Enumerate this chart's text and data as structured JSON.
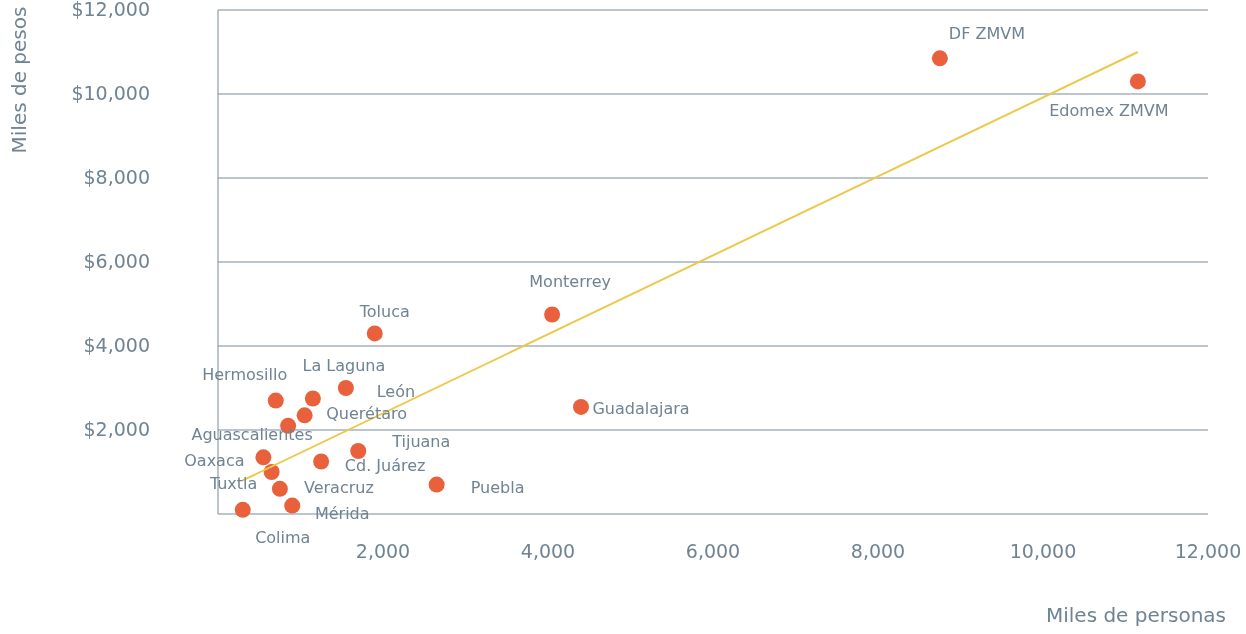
{
  "chart_data": {
    "type": "scatter",
    "xlabel": "Miles de personas",
    "ylabel": "Miles de pesos",
    "xlim": [
      0,
      12000
    ],
    "ylim": [
      0,
      12000
    ],
    "xticks": [
      {
        "value": 2000,
        "label": "2,000"
      },
      {
        "value": 4000,
        "label": "4,000"
      },
      {
        "value": 6000,
        "label": "6,000"
      },
      {
        "value": 8000,
        "label": "8,000"
      },
      {
        "value": 10000,
        "label": "10,000"
      },
      {
        "value": 12000,
        "label": "12,000"
      }
    ],
    "yticks": [
      {
        "value": 2000,
        "label": "$2,000"
      },
      {
        "value": 4000,
        "label": "$4,000"
      },
      {
        "value": 6000,
        "label": "$6,000"
      },
      {
        "value": 8000,
        "label": "$8,000"
      },
      {
        "value": 10000,
        "label": "$10,000"
      },
      {
        "value": 12000,
        "label": "$12,000"
      }
    ],
    "grid": "y",
    "marker": "circle",
    "series": [
      {
        "type": "scatter",
        "color": "#e8613c",
        "x": [
          8750,
          11150,
          4050,
          4400,
          1900,
          1150,
          1550,
          700,
          1050,
          850,
          550,
          650,
          750,
          900,
          300,
          2650,
          1700,
          1250
        ],
        "values": [
          10850,
          10300,
          4750,
          2550,
          4300,
          2750,
          3000,
          2700,
          2350,
          2100,
          1350,
          1000,
          600,
          200,
          100,
          700,
          1500,
          1250
        ]
      },
      {
        "type": "line",
        "marker": "none",
        "color": "#ecc94b",
        "x": [
          300,
          11150
        ],
        "values": [
          800,
          11000
        ]
      }
    ],
    "annotations": [
      {
        "text": "DF ZMVM",
        "x": 8750,
        "y": 10850
      },
      {
        "text": "Edomex ZMVM",
        "x": 11150,
        "y": 10300
      },
      {
        "text": "Monterrey",
        "x": 4050,
        "y": 4750
      },
      {
        "text": "Guadalajara",
        "x": 4400,
        "y": 2550
      },
      {
        "text": "Toluca",
        "x": 1900,
        "y": 4300
      },
      {
        "text": "La Laguna",
        "x": 1150,
        "y": 2750
      },
      {
        "text": "León",
        "x": 1550,
        "y": 3000
      },
      {
        "text": "Hermosillo",
        "x": 700,
        "y": 2700
      },
      {
        "text": "Querétaro",
        "x": 1050,
        "y": 2350
      },
      {
        "text": "Aguascalientes",
        "x": 850,
        "y": 2100
      },
      {
        "text": "Oaxaca",
        "x": 550,
        "y": 1350
      },
      {
        "text": "Tuxtla",
        "x": 650,
        "y": 1000
      },
      {
        "text": "Veracruz",
        "x": 750,
        "y": 600
      },
      {
        "text": "Mérida",
        "x": 900,
        "y": 200
      },
      {
        "text": "Colima",
        "x": 300,
        "y": 100
      },
      {
        "text": "Puebla",
        "x": 2650,
        "y": 700
      },
      {
        "text": "Tijuana",
        "x": 1700,
        "y": 1500
      },
      {
        "text": "Cd. Juárez",
        "x": 1250,
        "y": 1250
      }
    ]
  }
}
